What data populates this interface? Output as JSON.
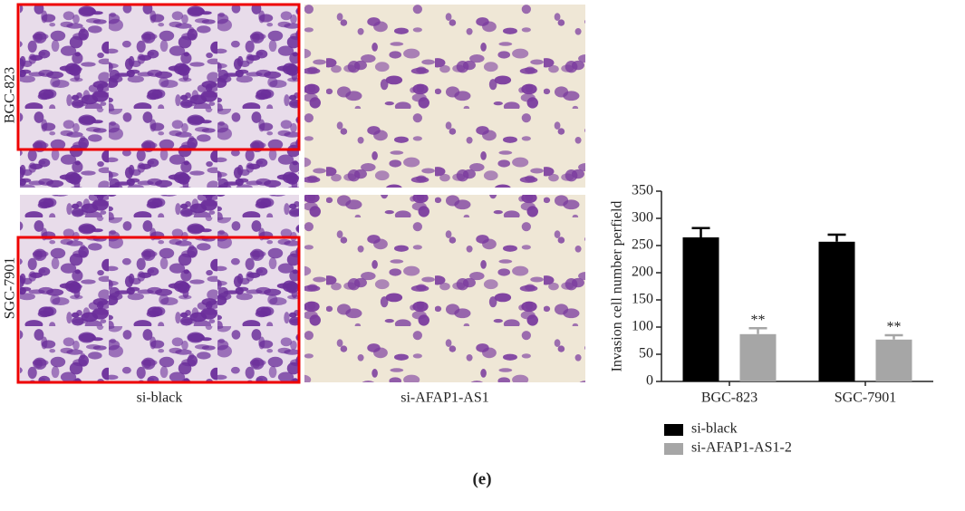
{
  "figure": {
    "row_labels": [
      "BGC-823",
      "SGC-7901"
    ],
    "column_labels": [
      "si-black",
      "si-AFAP1-AS1"
    ],
    "caption": "(e)"
  },
  "chart_data": {
    "type": "bar",
    "y_label": "Invasion cell number perfield",
    "categories": [
      "BGC-823",
      "SGC-7901"
    ],
    "series": [
      {
        "name": "si-black",
        "color": "#000000",
        "values": [
          265,
          257
        ],
        "errors": [
          17,
          13
        ]
      },
      {
        "name": "si-AFAP1-AS1-2",
        "color": "#a6a6a6",
        "values": [
          87,
          77
        ],
        "errors": [
          11,
          8
        ],
        "significance": [
          "**",
          "**"
        ]
      }
    ],
    "ylim": [
      0,
      350
    ],
    "yticks": [
      0,
      50,
      100,
      150,
      200,
      250,
      300,
      350
    ],
    "legend": "bottom"
  }
}
